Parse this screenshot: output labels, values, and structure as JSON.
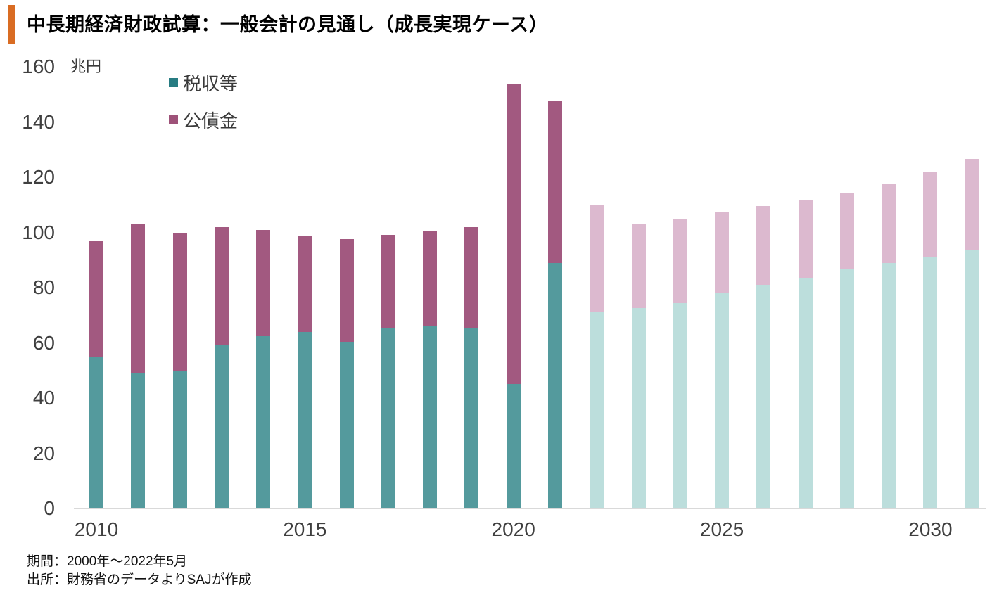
{
  "title": {
    "text": "中長期経済財政試算：一般会計の見通し（成長実現ケース）"
  },
  "axis": {
    "unit_label": "兆円",
    "y_ticks": [
      0,
      20,
      40,
      60,
      80,
      100,
      120,
      140,
      160
    ],
    "x_ticks": [
      {
        "label": "2010",
        "index": 0
      },
      {
        "label": "2015",
        "index": 5
      },
      {
        "label": "2020",
        "index": 10
      },
      {
        "label": "2025",
        "index": 15
      },
      {
        "label": "2030",
        "index": 20
      }
    ]
  },
  "legend": {
    "items": [
      {
        "label": "税収等"
      },
      {
        "label": "公債金"
      }
    ]
  },
  "footer": {
    "line1": "期間：2000年～2022年5月",
    "line2": "出所：財務省のデータよりSAJが作成"
  },
  "colors": {
    "accent_orange": "#D96C23",
    "tax_actual": "#549A9D",
    "bonds_actual": "#A25980",
    "tax_projected": "#BCDEDC",
    "bonds_projected": "#DCB9CF",
    "legend_tax_swatch": "#277C82",
    "legend_bonds_swatch": "#9E5279",
    "axis_line": "#D9D9D9",
    "tick_text": "#3F3F3F",
    "title_text": "#000000",
    "footnote_text": "#111111"
  },
  "chart_data": {
    "type": "bar",
    "stacked": true,
    "title": "中長期経済財政試算：一般会計の見通し（成長実現ケース）",
    "ylabel": "兆円",
    "xlabel": "",
    "ylim": [
      0,
      160
    ],
    "grid": false,
    "legend_position": "top-left",
    "unit_label": "兆円",
    "categories": [
      "2010",
      "2011",
      "2012",
      "2013",
      "2014",
      "2015",
      "2016",
      "2017",
      "2018",
      "2019",
      "2020",
      "2021",
      "2022",
      "2023",
      "2024",
      "2025",
      "2026",
      "2027",
      "2028",
      "2029",
      "2030",
      "2031"
    ],
    "series": [
      {
        "name": "税収等",
        "values": [
          55,
          49,
          50,
          59,
          62.5,
          64,
          60.5,
          65.5,
          66,
          65.5,
          45,
          89,
          71,
          72.5,
          74.5,
          78,
          81,
          83.5,
          86.5,
          89,
          91,
          93.5
        ]
      },
      {
        "name": "公債金",
        "values": [
          42,
          54,
          50,
          43,
          38.5,
          34.5,
          37,
          33.5,
          34.5,
          36.5,
          109,
          58.5,
          39,
          30.5,
          30.5,
          29.5,
          28.5,
          28,
          28,
          28.5,
          31,
          33
        ]
      }
    ],
    "totals": [
      97,
      103,
      100,
      102,
      101,
      98.5,
      97.5,
      99,
      100.5,
      102,
      154,
      147.5,
      110,
      103,
      105,
      107.5,
      109.5,
      111.5,
      114.5,
      117.5,
      122,
      126.5
    ],
    "projected_from_index": 12,
    "note": "2010-2021 actual (solid colors), 2022-2031 projection (light colors)"
  }
}
